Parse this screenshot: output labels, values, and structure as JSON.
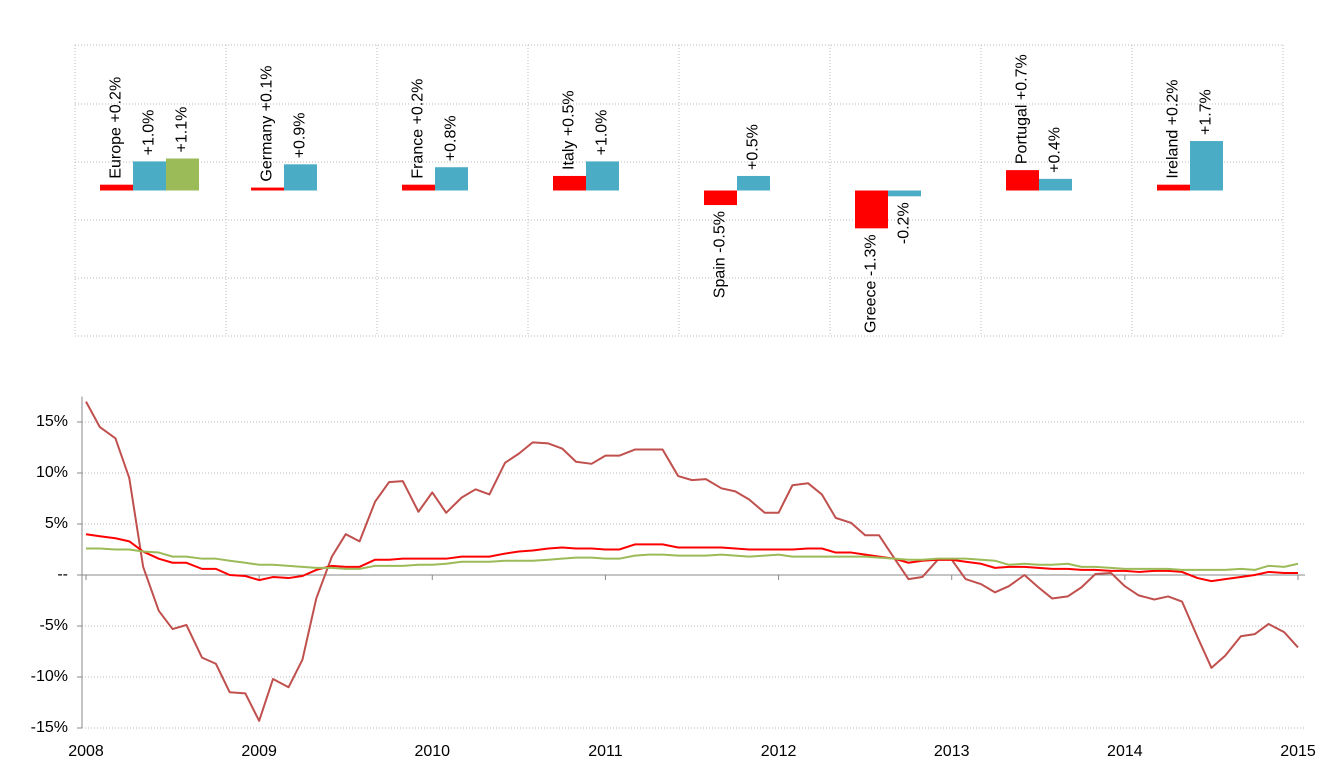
{
  "chart_data": [
    {
      "type": "bar",
      "ylim": [
        -5,
        5
      ],
      "series": [
        {
          "color": "#ff0000",
          "values": [
            0.2,
            0.1,
            0.2,
            0.5,
            -0.5,
            -1.3,
            0.7,
            0.2
          ],
          "value_labels": [
            "Europe +0.2%",
            "Germany +0.1%",
            "France +0.2%",
            "Italy +0.5%",
            "Spain -0.5%",
            "Greece -1.3%",
            "Portugal +0.7%",
            "Ireland +0.2%"
          ]
        },
        {
          "color": "#4bacc6",
          "values": [
            1.0,
            0.9,
            0.8,
            1.0,
            0.5,
            -0.2,
            0.4,
            1.7
          ],
          "value_labels": [
            "+1.0%",
            "+0.9%",
            "+0.8%",
            "+1.0%",
            "+0.5%",
            "-0.2%",
            "+0.4%",
            "+1.7%"
          ]
        },
        {
          "color": "#9bbb59",
          "values": [
            1.1,
            null,
            null,
            null,
            null,
            null,
            null,
            null
          ],
          "value_labels": [
            "+1.1%",
            null,
            null,
            null,
            null,
            null,
            null,
            null
          ]
        }
      ]
    },
    {
      "type": "line",
      "xlim": [
        2008,
        2015
      ],
      "xticks": [
        2008,
        2009,
        2010,
        2011,
        2012,
        2013,
        2014,
        2015
      ],
      "ylim": [
        -15,
        17.5
      ],
      "yticks": [
        {
          "value": -15,
          "label": "-15%"
        },
        {
          "value": -10,
          "label": "-10%"
        },
        {
          "value": -5,
          "label": "-5%"
        },
        {
          "value": 0,
          "label": "--"
        },
        {
          "value": 5,
          "label": "5%"
        },
        {
          "value": 10,
          "label": "10%"
        },
        {
          "value": 15,
          "label": "15%"
        }
      ],
      "grid": true,
      "x": [
        2008,
        2008.08,
        2008.17,
        2008.25,
        2008.33,
        2008.42,
        2008.5,
        2008.58,
        2008.67,
        2008.75,
        2008.83,
        2008.92,
        2009,
        2009.08,
        2009.17,
        2009.25,
        2009.33,
        2009.42,
        2009.5,
        2009.58,
        2009.67,
        2009.75,
        2009.83,
        2009.92,
        2010,
        2010.08,
        2010.17,
        2010.25,
        2010.33,
        2010.42,
        2010.5,
        2010.58,
        2010.67,
        2010.75,
        2010.83,
        2010.92,
        2011,
        2011.08,
        2011.17,
        2011.25,
        2011.33,
        2011.42,
        2011.5,
        2011.58,
        2011.67,
        2011.75,
        2011.83,
        2011.92,
        2012,
        2012.08,
        2012.17,
        2012.25,
        2012.33,
        2012.42,
        2012.5,
        2012.58,
        2012.67,
        2012.75,
        2012.83,
        2012.92,
        2013,
        2013.08,
        2013.17,
        2013.25,
        2013.33,
        2013.42,
        2013.5,
        2013.58,
        2013.67,
        2013.75,
        2013.83,
        2013.92,
        2014,
        2014.08,
        2014.17,
        2014.25,
        2014.33,
        2014.42,
        2014.5,
        2014.58,
        2014.67,
        2014.75,
        2014.83,
        2014.92,
        2015
      ],
      "series": [
        {
          "color": "#c0504d",
          "values": [
            17.0,
            14.5,
            13.4,
            9.5,
            0.8,
            -3.5,
            -5.3,
            -4.9,
            -8.1,
            -8.7,
            -11.5,
            -11.6,
            -14.3,
            -10.2,
            -11.0,
            -8.3,
            -2.3,
            1.8,
            4.0,
            3.3,
            7.2,
            9.1,
            9.2,
            6.2,
            8.1,
            6.1,
            7.6,
            8.4,
            7.9,
            11.0,
            11.9,
            13.0,
            12.9,
            12.4,
            11.1,
            10.9,
            11.7,
            11.7,
            12.3,
            12.3,
            12.3,
            9.7,
            9.3,
            9.4,
            8.5,
            8.2,
            7.4,
            6.1,
            6.1,
            8.8,
            9.0,
            7.9,
            5.6,
            5.1,
            3.9,
            3.9,
            1.6,
            -0.4,
            -0.2,
            1.5,
            1.5,
            -0.4,
            -0.9,
            -1.7,
            -1.1,
            0.0,
            -1.2,
            -2.3,
            -2.1,
            -1.2,
            0.1,
            0.2,
            -1.1,
            -2.0,
            -2.4,
            -2.1,
            -2.6,
            -6.1,
            -9.1,
            -7.9,
            -6.0,
            -5.8,
            -4.8,
            -5.6,
            -7.1
          ]
        },
        {
          "color": "#ff0000",
          "values": [
            4.0,
            3.8,
            3.6,
            3.3,
            2.3,
            1.6,
            1.2,
            1.2,
            0.6,
            0.6,
            0.0,
            -0.1,
            -0.5,
            -0.2,
            -0.3,
            -0.1,
            0.5,
            0.9,
            0.8,
            0.8,
            1.5,
            1.5,
            1.6,
            1.6,
            1.6,
            1.6,
            1.8,
            1.8,
            1.8,
            2.1,
            2.3,
            2.4,
            2.6,
            2.7,
            2.6,
            2.6,
            2.5,
            2.5,
            3.0,
            3.0,
            3.0,
            2.7,
            2.7,
            2.7,
            2.7,
            2.6,
            2.5,
            2.5,
            2.5,
            2.5,
            2.6,
            2.6,
            2.2,
            2.2,
            2.0,
            1.8,
            1.6,
            1.2,
            1.4,
            1.5,
            1.5,
            1.3,
            1.1,
            0.7,
            0.8,
            0.8,
            0.7,
            0.6,
            0.6,
            0.5,
            0.5,
            0.4,
            0.4,
            0.3,
            0.4,
            0.4,
            0.3,
            -0.3,
            -0.6,
            -0.4,
            -0.2,
            0.0,
            0.3,
            0.2,
            0.2
          ]
        },
        {
          "color": "#9bbb59",
          "values": [
            2.6,
            2.6,
            2.5,
            2.5,
            2.3,
            2.2,
            1.8,
            1.8,
            1.6,
            1.6,
            1.4,
            1.2,
            1.0,
            1.0,
            0.9,
            0.8,
            0.7,
            0.7,
            0.6,
            0.6,
            0.9,
            0.9,
            0.9,
            1.0,
            1.0,
            1.1,
            1.3,
            1.3,
            1.3,
            1.4,
            1.4,
            1.4,
            1.5,
            1.6,
            1.7,
            1.7,
            1.6,
            1.6,
            1.9,
            2.0,
            2.0,
            1.9,
            1.9,
            1.9,
            2.0,
            1.9,
            1.8,
            1.9,
            2.0,
            1.8,
            1.8,
            1.8,
            1.8,
            1.8,
            1.8,
            1.7,
            1.6,
            1.5,
            1.5,
            1.6,
            1.6,
            1.6,
            1.5,
            1.4,
            1.0,
            1.1,
            1.0,
            1.0,
            1.1,
            0.8,
            0.8,
            0.7,
            0.6,
            0.6,
            0.6,
            0.6,
            0.5,
            0.5,
            0.5,
            0.5,
            0.6,
            0.5,
            0.9,
            0.8,
            1.1
          ]
        }
      ]
    }
  ]
}
